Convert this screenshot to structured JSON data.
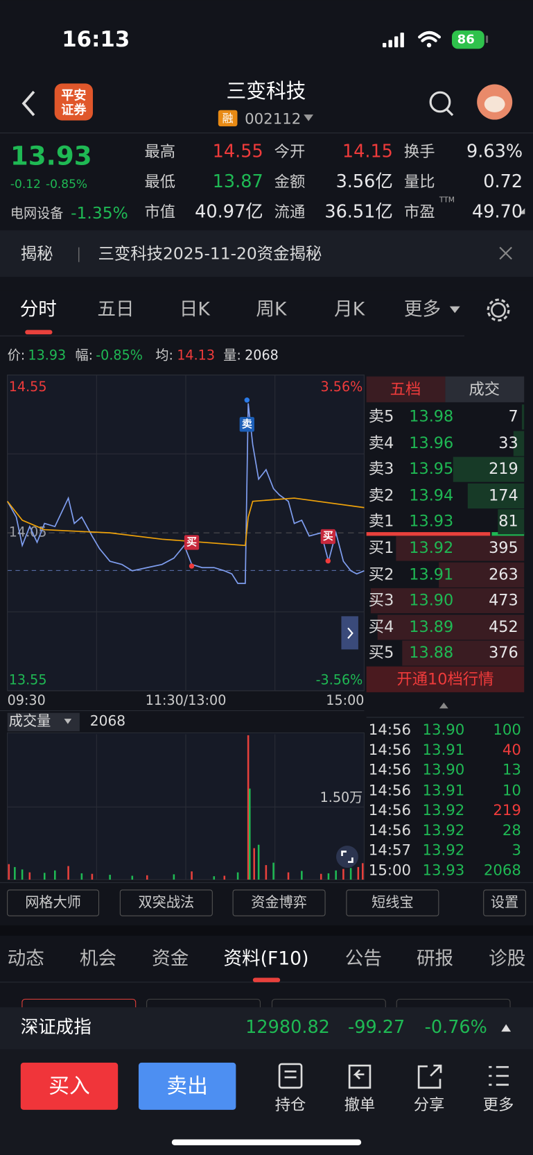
{
  "status_bar": {
    "time": "16:13",
    "battery": "86"
  },
  "header": {
    "broker": [
      "平安",
      "证券"
    ],
    "title": "三变科技",
    "badge": "融",
    "code": "002112"
  },
  "quote": {
    "price": "13.93",
    "change": "-0.12",
    "change_pct": "-0.85%",
    "sector": "电网设备",
    "sector_change": "-1.35%",
    "stats": [
      {
        "label": "最高",
        "value": "14.55",
        "color": "#ef3b3b"
      },
      {
        "label": "今开",
        "value": "14.15",
        "color": "#ef3b3b"
      },
      {
        "label": "换手",
        "value": "9.63%",
        "color": "#e8e8ea"
      },
      {
        "label": "最低",
        "value": "13.87",
        "color": "#1fb954"
      },
      {
        "label": "金额",
        "value": "3.56亿",
        "color": "#e8e8ea"
      },
      {
        "label": "量比",
        "value": "0.72",
        "color": "#e8e8ea"
      },
      {
        "label": "市值",
        "value": "40.97亿",
        "color": "#e8e8ea"
      },
      {
        "label": "流通",
        "value": "36.51亿",
        "color": "#e8e8ea"
      },
      {
        "label": "市盈",
        "sup": "TTM",
        "value": "49.70",
        "color": "#e8e8ea"
      }
    ]
  },
  "notice": {
    "tag": "揭秘",
    "text": "三变科技2025-11-20资金揭秘"
  },
  "period_tabs": [
    "分时",
    "五日",
    "日K",
    "周K",
    "月K",
    "更多"
  ],
  "summary": [
    {
      "label": "价:",
      "value": "13.93",
      "color": "#1fb954"
    },
    {
      "label": "幅:",
      "value": "-0.85%",
      "color": "#1fb954"
    },
    {
      "label": "均:",
      "value": "14.13",
      "color": "#ef3b3b"
    },
    {
      "label": "量:",
      "value": "2068",
      "color": "#e8e8ea"
    }
  ],
  "signals": [
    "卖",
    "买",
    "买"
  ],
  "chart_data": [
    {
      "type": "line",
      "grid": true,
      "xlim": [
        0,
        240
      ],
      "xticks": [
        {
          "value": 0,
          "label": "09:30"
        },
        {
          "value": 120,
          "label": "11:30/13:00"
        },
        {
          "value": 240,
          "label": "15:00"
        }
      ],
      "ylim": [
        13.55,
        14.55
      ],
      "yticks": [
        13.55,
        14.05,
        14.55
      ],
      "y2lim": [
        -3.56,
        3.56
      ],
      "y2ticks": [
        {
          "value": -3.56,
          "label": "-3.56%"
        },
        {
          "value": 3.56,
          "label": "3.56%"
        }
      ],
      "series": [
        {
          "color": "#7f9ef0",
          "x": [
            0,
            6,
            10,
            15,
            20,
            25,
            32,
            41,
            45,
            50,
            57,
            62,
            69,
            77,
            84,
            94,
            104,
            112,
            119,
            124,
            131,
            139,
            146,
            151,
            155,
            160,
            162,
            165,
            169,
            174,
            179,
            183,
            189,
            193,
            198,
            203,
            211,
            216,
            221,
            226,
            231,
            235,
            240
          ],
          "values": [
            14.15,
            14.1,
            14.01,
            14.07,
            14.02,
            14.08,
            14.07,
            14.16,
            14.08,
            14.1,
            14.04,
            14.0,
            13.96,
            13.95,
            13.93,
            13.94,
            13.95,
            13.97,
            14.01,
            13.95,
            13.94,
            13.94,
            13.93,
            13.92,
            13.89,
            13.89,
            14.46,
            14.33,
            14.22,
            14.25,
            14.19,
            14.17,
            14.15,
            14.08,
            14.09,
            14.04,
            14.05,
            13.96,
            14.05,
            13.96,
            13.93,
            13.92,
            13.93
          ]
        },
        {
          "color": "#f0a30a",
          "x": [
            0,
            10,
            25,
            69,
            104,
            160,
            162,
            165,
            193,
            240
          ],
          "values": [
            14.15,
            14.09,
            14.06,
            14.05,
            14.03,
            14.01,
            14.1,
            14.15,
            14.16,
            14.13
          ]
        }
      ]
    },
    {
      "type": "bar",
      "grid": true,
      "xlim": [
        0,
        240
      ],
      "ylim": [
        0,
        30000
      ],
      "yticks": [
        {
          "value": 15000,
          "label": "1.50万"
        }
      ],
      "series": [
        {
          "color": "#e8413c",
          "x": [
            1,
            15,
            41,
            57,
            94,
            124,
            146,
            162,
            166,
            174,
            189,
            211,
            226,
            236,
            239
          ],
          "values": [
            3200,
            1500,
            2800,
            1200,
            900,
            1700,
            800,
            29800,
            6500,
            3000,
            1500,
            1200,
            2200,
            2600,
            3400
          ]
        },
        {
          "color": "#1fb954",
          "x": [
            5,
            10,
            25,
            32,
            50,
            69,
            84,
            112,
            139,
            155,
            163,
            169,
            179,
            198,
            216,
            221,
            231
          ],
          "values": [
            2600,
            2100,
            1400,
            1900,
            1300,
            1000,
            800,
            1100,
            700,
            1500,
            18800,
            7200,
            3500,
            1800,
            1300,
            1900,
            2400
          ]
        }
      ]
    }
  ],
  "volume_header": {
    "label": "成交量",
    "value": "2068"
  },
  "order_book": {
    "tabs": [
      "五档",
      "成交"
    ],
    "asks": [
      {
        "label": "卖5",
        "price": "13.98",
        "volume": 7
      },
      {
        "label": "卖4",
        "price": "13.96",
        "volume": 33
      },
      {
        "label": "卖3",
        "price": "13.95",
        "volume": 219
      },
      {
        "label": "卖2",
        "price": "13.94",
        "volume": 174
      },
      {
        "label": "卖1",
        "price": "13.93",
        "volume": 81
      }
    ],
    "bids": [
      {
        "label": "买1",
        "price": "13.92",
        "volume": 395
      },
      {
        "label": "买2",
        "price": "13.91",
        "volume": 263
      },
      {
        "label": "买3",
        "price": "13.90",
        "volume": 473
      },
      {
        "label": "买4",
        "price": "13.89",
        "volume": 452
      },
      {
        "label": "买5",
        "price": "13.88",
        "volume": 376
      }
    ],
    "upgrade": "开通10档行情"
  },
  "trades": [
    {
      "time": "14:56",
      "price": "13.90",
      "volume": "100",
      "color": "#1fb954"
    },
    {
      "time": "14:56",
      "price": "13.91",
      "volume": "40",
      "color": "#ef3b3b"
    },
    {
      "time": "14:56",
      "price": "13.90",
      "volume": "13",
      "color": "#1fb954"
    },
    {
      "time": "14:56",
      "price": "13.91",
      "volume": "10",
      "color": "#1fb954"
    },
    {
      "time": "14:56",
      "price": "13.92",
      "volume": "219",
      "color": "#ef3b3b"
    },
    {
      "time": "14:56",
      "price": "13.92",
      "volume": "28",
      "color": "#1fb954"
    },
    {
      "time": "14:57",
      "price": "13.92",
      "volume": "3",
      "color": "#1fb954"
    },
    {
      "time": "15:00",
      "price": "13.93",
      "volume": "2068",
      "color": "#1fb954"
    }
  ],
  "tools": [
    "网格大师",
    "双突战法",
    "资金博弈",
    "短线宝",
    "设置"
  ],
  "info_tabs": [
    "动态",
    "机会",
    "资金",
    "资料(F10)",
    "公告",
    "研报",
    "诊股"
  ],
  "index": {
    "name": "深证成指",
    "value": "12980.82",
    "change": "-99.27",
    "change_pct": "-0.76%"
  },
  "actions": {
    "buy": "买入",
    "sell": "卖出",
    "items": [
      "持仓",
      "撤单",
      "分享",
      "更多"
    ]
  }
}
